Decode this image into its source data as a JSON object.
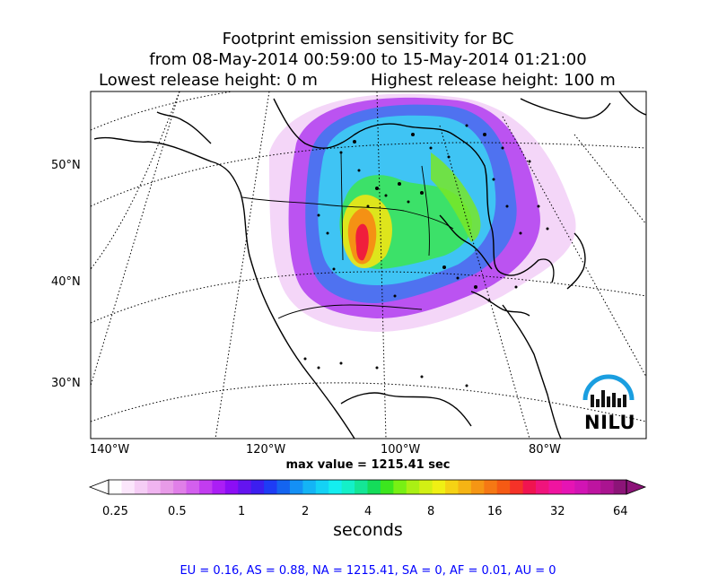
{
  "title": {
    "line1": "Footprint emission sensitivity for BC",
    "line2": "from 08-May-2014 00:59:00 to 15-May-2014 01:21:00",
    "line3_left": "Lowest release height: 0 m",
    "line3_right": "Highest release height: 100 m"
  },
  "map": {
    "lat_labels": [
      "50°N",
      "40°N",
      "30°N"
    ],
    "lon_labels": [
      "140°W",
      "120°W",
      "100°W",
      "80°W"
    ],
    "max_value": "max value = 1215.41 sec",
    "logo_text": "NILU",
    "logo_color": "#1a9ee0"
  },
  "colorbar": {
    "ticks": [
      "0.25",
      "0.5",
      "1",
      "2",
      "4",
      "8",
      "16",
      "32",
      "64"
    ],
    "unit": "seconds",
    "colors": [
      "#ffffff",
      "#fbe6fb",
      "#f5cdf5",
      "#f0b4f0",
      "#e89be8",
      "#e07fe8",
      "#d35fee",
      "#c23cf0",
      "#ab1ef5",
      "#8c0ef5",
      "#6414f0",
      "#3c1ef0",
      "#1e3cf5",
      "#1464f0",
      "#1490f5",
      "#14b4f5",
      "#14d2f5",
      "#14eef0",
      "#14f0c8",
      "#14e696",
      "#14dc5a",
      "#3ce61e",
      "#78f014",
      "#aaf014",
      "#d2f014",
      "#f0f014",
      "#f5d214",
      "#f5b414",
      "#f59614",
      "#f57814",
      "#f55a14",
      "#f53228",
      "#f01450",
      "#f0147c",
      "#f014a0",
      "#e614b4",
      "#d214b4",
      "#be14a0",
      "#aa1490",
      "#8c1478"
    ]
  },
  "stats": "EU = 0.16,  AS = 0.88,  NA = 1215.41,  SA = 0,  AF = 0.01,  AU = 0"
}
